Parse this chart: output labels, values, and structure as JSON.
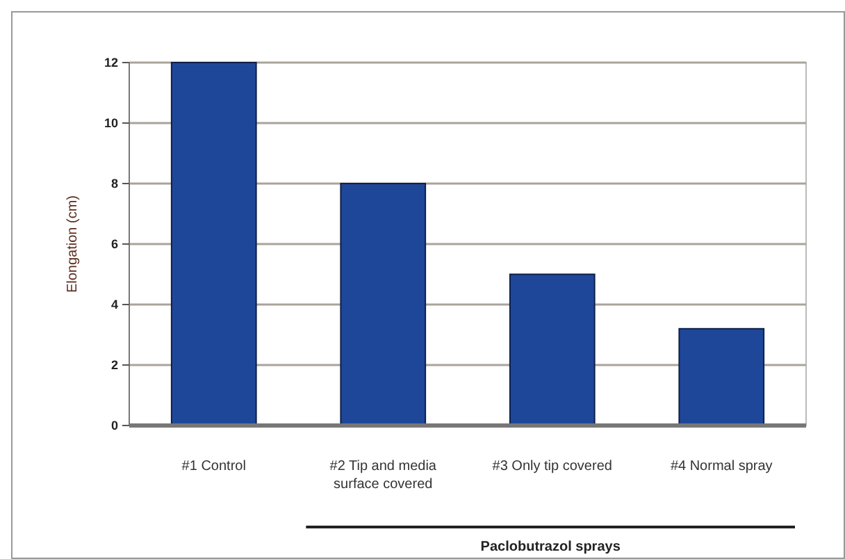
{
  "chart_data": {
    "type": "bar",
    "ylabel": "Elongation (cm)",
    "categories": [
      "#1 Control",
      "#2 Tip and media surface covered",
      "#3 Only tip covered",
      "#4 Normal spray"
    ],
    "values": [
      12,
      8,
      5,
      3.2
    ],
    "color": "#1f4799",
    "ylim": [
      0,
      12
    ],
    "yticks": [
      0,
      2,
      4,
      6,
      8,
      10,
      12
    ],
    "grid": "y",
    "annotations": [
      "Paclobutrazol sprays"
    ]
  }
}
